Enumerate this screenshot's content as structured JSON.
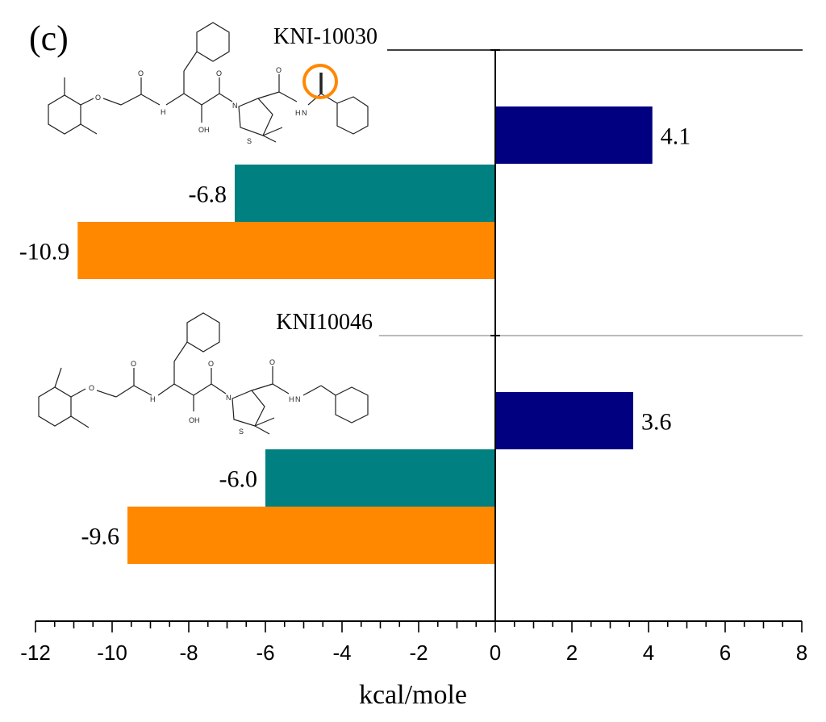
{
  "panel_label": "(c)",
  "colors": {
    "series_a": "#000080",
    "series_b": "#008080",
    "series_c": "#FF8800",
    "marker": "#FF8800"
  },
  "chart_data": {
    "type": "bar",
    "orientation": "horizontal",
    "xlabel": "kcal/mole",
    "xlim": [
      -12,
      8
    ],
    "x_ticks": [
      -12,
      -10,
      -8,
      -6,
      -4,
      -2,
      0,
      2,
      4,
      6,
      8
    ],
    "grid": false,
    "groups": [
      {
        "name": "KNI-10030",
        "values": [
          4.1,
          -6.8,
          -10.9
        ],
        "labels": [
          "4.1",
          "-6.8",
          "-10.9"
        ]
      },
      {
        "name": "KNI10046",
        "values": [
          3.6,
          -6.0,
          -9.6
        ],
        "labels": [
          "3.6",
          "-6.0",
          "-9.6"
        ]
      }
    ],
    "series_colors": [
      "#000080",
      "#008080",
      "#FF8800"
    ]
  },
  "molecule_atoms": {
    "hydroxyl": "OH",
    "amine": "H",
    "nitrogen": "N",
    "oxygen": "O",
    "sulfur": "S"
  }
}
